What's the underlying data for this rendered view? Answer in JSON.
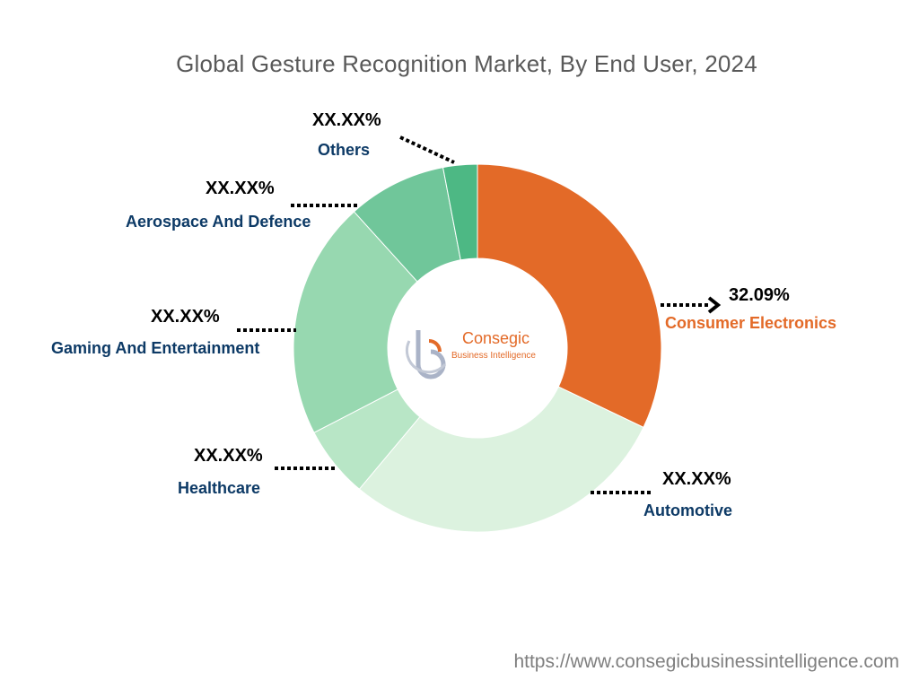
{
  "chart_data": {
    "type": "pie",
    "variant": "donut",
    "title": "Global Gesture Recognition Market, By End User, 2024",
    "categories": [
      "Consumer Electronics",
      "Automotive",
      "Healthcare",
      "Gaming And Entertainment",
      "Aerospace And Defence",
      "Others"
    ],
    "values": [
      32.09,
      29.0,
      6.3,
      20.9,
      8.7,
      3.0
    ],
    "value_labels": [
      "32.09%",
      "XX.XX%",
      "XX.XX%",
      "XX.XX%",
      "XX.XX%",
      "XX.XX%"
    ],
    "colors": [
      "#e36a28",
      "#dcf2df",
      "#b8e6c6",
      "#97d8b0",
      "#70c69a",
      "#4db884"
    ],
    "legend": "none"
  },
  "logo": {
    "name": "Consegic",
    "tagline": "Business Intelligence",
    "icon": "consegic-logo-icon"
  },
  "footer_url": "https://www.consegicbusinessintelligence.com"
}
